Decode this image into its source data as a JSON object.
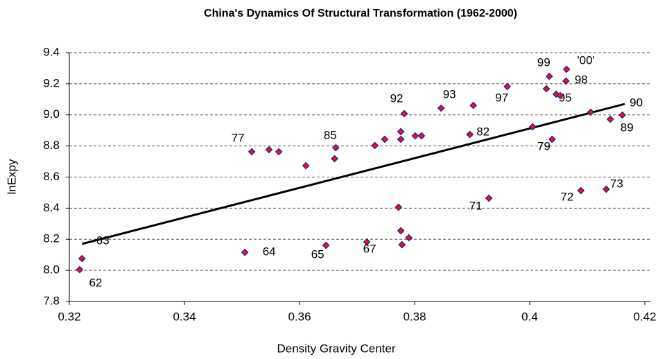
{
  "chart_data": {
    "type": "scatter",
    "title": "China's Dynamics Of Structural Transformation (1962-2000)",
    "x_label": "Density Gravity Center",
    "y_label": "lnExpy",
    "x": [
      0.3218,
      0.3222,
      0.3505,
      0.3646,
      0.3717,
      0.3778,
      0.379,
      0.3776,
      0.3772,
      0.3929,
      0.4089,
      0.4133,
      0.3517,
      0.3547,
      0.3564,
      0.3611,
      0.3663,
      0.3661,
      0.3731,
      0.3748,
      0.3776,
      0.3776,
      0.3801,
      0.3812,
      0.3782,
      0.3846,
      0.3902,
      0.3896,
      0.3961,
      0.4005,
      0.4039,
      0.4034,
      0.4029,
      0.4046,
      0.4053,
      0.4064,
      0.4063,
      0.4106,
      0.414,
      0.4161
    ],
    "y": [
      8.005,
      8.076,
      8.116,
      8.161,
      8.183,
      8.165,
      8.21,
      8.255,
      8.406,
      8.464,
      8.513,
      8.522,
      8.763,
      8.776,
      8.763,
      8.673,
      8.789,
      8.718,
      8.803,
      8.843,
      8.843,
      8.892,
      8.865,
      8.865,
      9.008,
      9.043,
      9.061,
      8.874,
      9.182,
      8.923,
      8.843,
      9.248,
      9.168,
      9.133,
      9.124,
      9.293,
      9.217,
      9.017,
      8.972,
      8.999
    ],
    "point_labels": [
      "62",
      "63",
      "64",
      "65",
      "67",
      null,
      null,
      null,
      null,
      "71",
      "72",
      "73",
      "77",
      null,
      null,
      null,
      "85",
      null,
      null,
      null,
      null,
      null,
      null,
      null,
      "92",
      "93",
      null,
      "82",
      "97",
      null,
      "79",
      "99",
      null,
      "95",
      null,
      "'00'",
      "98",
      null,
      "89",
      "90"
    ],
    "marker_color": "#e8132a",
    "marker_edge_color": "#1a1a8c",
    "trendline": {
      "x": [
        0.3222,
        0.4165
      ],
      "y": [
        8.17,
        9.07
      ],
      "color": "#000000"
    },
    "xlim": [
      0.32,
      0.42
    ],
    "xticks": [
      0.32,
      0.34,
      0.36,
      0.38,
      0.4,
      0.42
    ],
    "ylim": [
      7.8,
      9.4
    ],
    "yticks": [
      7.8,
      {
        "value": 8,
        "label": "8.0"
      },
      8.2,
      8.4,
      8.6,
      8.8,
      {
        "value": 9,
        "label": "9.0"
      },
      9.2,
      9.4
    ],
    "grid": true
  }
}
